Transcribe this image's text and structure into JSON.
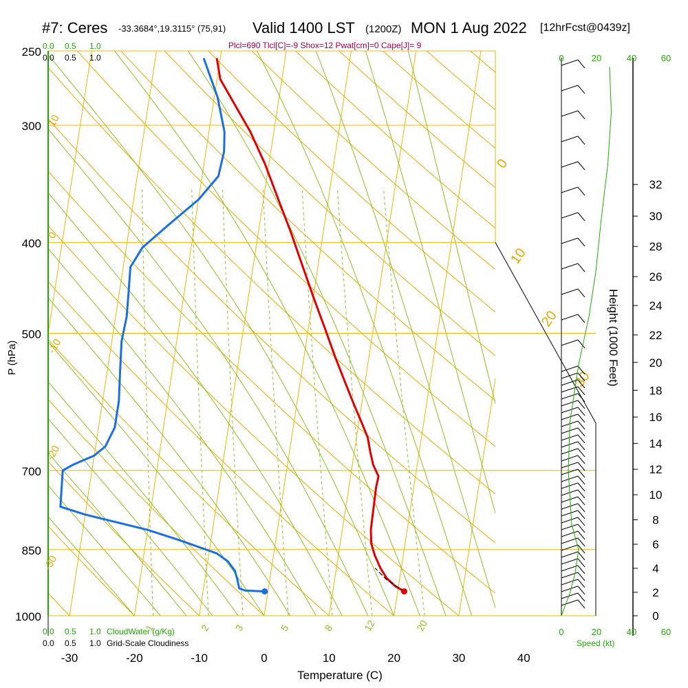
{
  "header": {
    "station": "#7: Ceres",
    "coords": "-33.3684°,19.3115° (75,91)",
    "valid": "Valid 1400 LST",
    "zulu": "(1200Z)",
    "date": "MON 1 Aug 2022",
    "forecast": "[12hrFcst@0439z]",
    "params": "Plcl=690 Tlcl[C]=-9 Shox=12 Pwat[cm]=0 Cape[J]= 9"
  },
  "colors": {
    "temperature": "#e00000",
    "dewpoint": "#1a6fe0",
    "isotherm": "#f0b400",
    "dry_adiabat": "#e8a800",
    "moist_adiabat": "#88c020",
    "mixing_ratio": "#88c020",
    "green_text": "#1faa00",
    "params_text": "#a0004a"
  },
  "chart_data": {
    "type": "line",
    "title": "#7: Ceres",
    "xlabel": "Temperature (C)",
    "ylabel": "P (hPa)",
    "y2label": "Height (1000 Feet)",
    "xlim": [
      -35,
      35
    ],
    "ylim": [
      1000,
      250
    ],
    "x_ticks": [
      -30,
      -20,
      -10,
      0,
      10,
      20,
      30,
      40
    ],
    "y_ticks": [
      250,
      300,
      400,
      500,
      700,
      850,
      1000
    ],
    "height_ticks": [
      0,
      2,
      4,
      6,
      8,
      10,
      12,
      14,
      16,
      18,
      20,
      22,
      24,
      26,
      28,
      30,
      32
    ],
    "height_pressures": [
      1000,
      944,
      890,
      839,
      790,
      743,
      698,
      655,
      614,
      575,
      537,
      502,
      467,
      435,
      404,
      375,
      347
    ],
    "skew_per_decade_px": 210,
    "dry_adiabat_labels": [
      "10",
      "0",
      "-10",
      "-20",
      "-30"
    ],
    "moist_adiabat_labels": [
      "0",
      "10",
      "20",
      "30"
    ],
    "mixing_ratio_labels": [
      "1",
      "2",
      "3",
      "5",
      "8",
      "12",
      "20"
    ],
    "mixing_ratio_values": [
      1,
      2,
      3,
      5,
      8,
      12,
      20
    ],
    "cloud_scale_top": [
      "0.0",
      "0.5",
      "1.0"
    ],
    "cloud_scale_bottom": [
      "0.0",
      "0.5",
      "1.0"
    ],
    "cloudwater_label": "CloudWater (g/Kg)",
    "cloudiness_label": "Grid-Scale Cloudiness",
    "speed_ticks": [
      "0",
      "20",
      "40",
      "60"
    ],
    "speed_label": "Speed (kt)",
    "series": [
      {
        "name": "Temperature",
        "points": [
          [
            21,
            942
          ],
          [
            19.5,
            930
          ],
          [
            18,
            912
          ],
          [
            16.8,
            890
          ],
          [
            15.6,
            862
          ],
          [
            14.8,
            838
          ],
          [
            14.4,
            810
          ],
          [
            14.3,
            770
          ],
          [
            14.2,
            730
          ],
          [
            14.3,
            710
          ],
          [
            13.2,
            690
          ],
          [
            12.5,
            670
          ],
          [
            11.7,
            645
          ],
          [
            10.3,
            620
          ],
          [
            8.8,
            595
          ],
          [
            7,
            565
          ],
          [
            4.8,
            530
          ],
          [
            2.6,
            495
          ],
          [
            0.2,
            460
          ],
          [
            -2.3,
            425
          ],
          [
            -5,
            390
          ],
          [
            -7.7,
            360
          ],
          [
            -10.6,
            330
          ],
          [
            -13.6,
            305
          ],
          [
            -16.7,
            285
          ],
          [
            -19.5,
            268
          ],
          [
            -20.5,
            255
          ]
        ]
      },
      {
        "name": "Dew Point",
        "points": [
          [
            -0.5,
            942
          ],
          [
            -3.5,
            940
          ],
          [
            -4.5,
            935
          ],
          [
            -5,
            915
          ],
          [
            -5.6,
            895
          ],
          [
            -6.9,
            875
          ],
          [
            -8.8,
            858
          ],
          [
            -15,
            830
          ],
          [
            -20,
            810
          ],
          [
            -30,
            780
          ],
          [
            -34,
            765
          ],
          [
            -34.5,
            700
          ],
          [
            -33,
            690
          ],
          [
            -30,
            675
          ],
          [
            -28.5,
            660
          ],
          [
            -27.5,
            630
          ],
          [
            -27.5,
            590
          ],
          [
            -28,
            550
          ],
          [
            -28.5,
            510
          ],
          [
            -28.3,
            480
          ],
          [
            -28.6,
            450
          ],
          [
            -28.9,
            425
          ],
          [
            -27.5,
            405
          ],
          [
            -24,
            383
          ],
          [
            -20,
            360
          ],
          [
            -17.5,
            340
          ],
          [
            -17.2,
            320
          ],
          [
            -17.6,
            305
          ],
          [
            -19.5,
            280
          ],
          [
            -22.5,
            255
          ]
        ]
      },
      {
        "name": "Parcel",
        "points": [
          [
            21,
            942
          ],
          [
            18,
            915
          ],
          [
            16,
            890
          ]
        ]
      }
    ],
    "surface_markers": {
      "temperature": [
        21,
        942
      ],
      "dewpoint": [
        -0.5,
        942
      ]
    },
    "wind_speed_profile": [
      [
        0,
        1000
      ],
      [
        5,
        945
      ],
      [
        8,
        900
      ],
      [
        10,
        850
      ],
      [
        6,
        800
      ],
      [
        4,
        700
      ],
      [
        5,
        620
      ],
      [
        10,
        540
      ],
      [
        16,
        480
      ],
      [
        20,
        430
      ],
      [
        23,
        380
      ],
      [
        27,
        330
      ],
      [
        29,
        290
      ],
      [
        28,
        260
      ]
    ]
  }
}
